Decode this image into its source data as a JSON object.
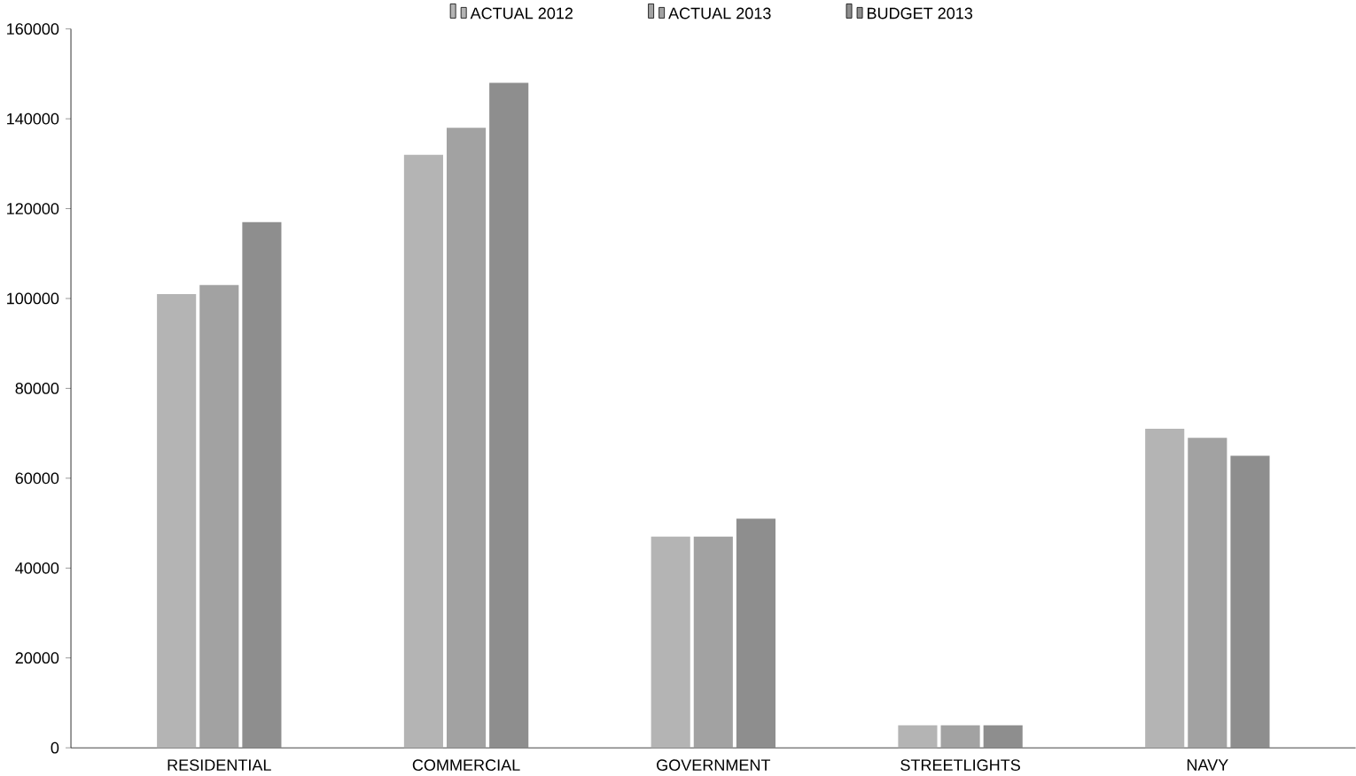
{
  "chart_data": {
    "type": "bar",
    "categories": [
      "RESIDENTIAL",
      "COMMERCIAL",
      "GOVERNMENT",
      "STREETLIGHTS",
      "NAVY"
    ],
    "series": [
      {
        "name": "ACTUAL 2012",
        "color": "#b4b4b4",
        "values": [
          101000,
          132000,
          47000,
          5000,
          71000
        ]
      },
      {
        "name": "ACTUAL 2013",
        "color": "#a2a2a2",
        "values": [
          103000,
          138000,
          47000,
          5000,
          69000
        ]
      },
      {
        "name": "BUDGET 2013",
        "color": "#8e8e8e",
        "values": [
          117000,
          148000,
          51000,
          5000,
          65000
        ]
      }
    ],
    "ylim": [
      0,
      160000
    ],
    "yticks": [
      0,
      20000,
      40000,
      60000,
      80000,
      100000,
      120000,
      140000,
      160000
    ],
    "grid": false,
    "legend": "top"
  }
}
